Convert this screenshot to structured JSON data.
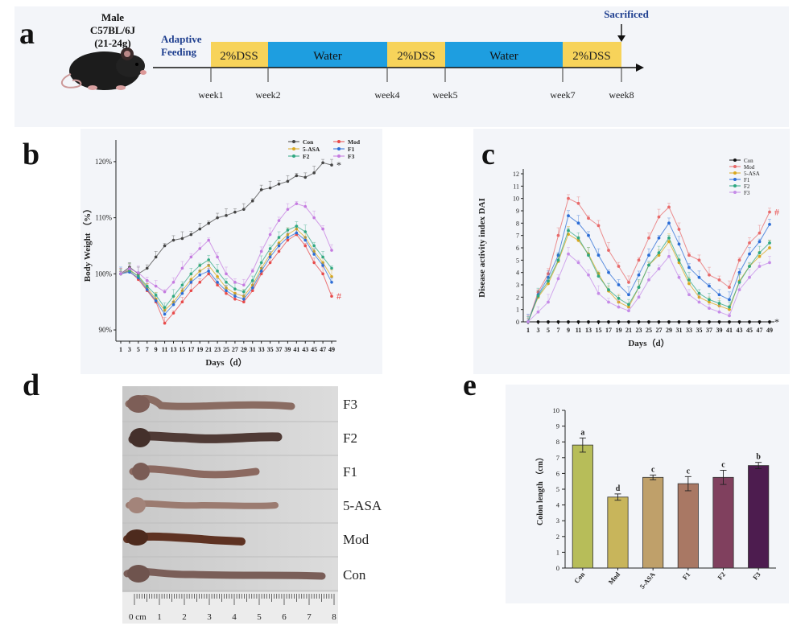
{
  "panel_labels": [
    "a",
    "b",
    "c",
    "d",
    "e"
  ],
  "panel_a": {
    "mouse_label": [
      "Male",
      "C57BL/6J",
      "(21-24g)"
    ],
    "adaptive_label": [
      "Adaptive",
      "Feeding"
    ],
    "sacrificed": "Sacrificed",
    "segments": [
      {
        "label": "2%DSS",
        "type": "dss"
      },
      {
        "label": "Water",
        "type": "water"
      },
      {
        "label": "2%DSS",
        "type": "dss"
      },
      {
        "label": "Water",
        "type": "water"
      },
      {
        "label": "2%DSS",
        "type": "dss"
      }
    ],
    "weeks": [
      "week1",
      "week2",
      "week4",
      "week5",
      "week7",
      "week8"
    ],
    "colors": {
      "dss": "#f7d35a",
      "water": "#1e9ee0",
      "label_blue": "#1f3f8f"
    }
  },
  "panel_d": {
    "labels": [
      "F3",
      "F2",
      "F1",
      "5-ASA",
      "Mod",
      "Con"
    ],
    "ruler_text": "0 cm",
    "ruler_numbers": [
      "1",
      "2",
      "3",
      "4",
      "5",
      "6",
      "7",
      "8"
    ]
  },
  "chart_data": [
    {
      "id": "b",
      "type": "line",
      "xlabel": "Days（d）",
      "ylabel": "Body Weight （%）",
      "x": [
        1,
        3,
        5,
        7,
        9,
        11,
        13,
        15,
        17,
        19,
        21,
        23,
        25,
        27,
        29,
        31,
        33,
        35,
        37,
        39,
        41,
        43,
        45,
        47,
        49
      ],
      "ylim": [
        88,
        123
      ],
      "y_ticks": [
        "90%",
        "100%",
        "110%",
        "120%"
      ],
      "y_tick_values": [
        90,
        100,
        110,
        120
      ],
      "series": [
        {
          "name": "Con",
          "color": "#444444",
          "values": [
            100,
            101.2,
            100,
            101,
            103,
            105,
            106,
            106.3,
            107,
            108,
            109,
            110,
            110.4,
            111,
            111.5,
            113,
            115,
            115.3,
            116,
            116.5,
            117.5,
            117.2,
            118,
            119.8,
            119.4
          ]
        },
        {
          "name": "Mod",
          "color": "#e84a4a",
          "values": [
            100,
            100.5,
            99,
            97,
            95,
            91.2,
            93,
            95,
            97,
            98.5,
            100,
            98,
            96.5,
            95.5,
            95,
            97,
            100,
            102,
            104,
            106,
            107,
            105,
            102,
            100,
            96
          ]
        },
        {
          "name": "5-ASA",
          "color": "#d9a81e",
          "values": [
            100,
            100.8,
            99.5,
            97.5,
            95.5,
            93.5,
            95,
            97,
            99,
            100.5,
            101.5,
            99.5,
            97.5,
            96.5,
            96,
            98,
            101,
            103.5,
            105.5,
            107,
            108,
            106.5,
            104,
            102,
            99.5
          ]
        },
        {
          "name": "F1",
          "color": "#2c6dd6",
          "values": [
            100,
            100.3,
            99.3,
            97.2,
            95.2,
            92.8,
            94.5,
            96.5,
            98.5,
            99.8,
            100.5,
            98.5,
            97,
            96,
            95.5,
            97.5,
            100.5,
            103,
            105,
            106.5,
            107.3,
            106,
            103.5,
            101.5,
            98.5
          ]
        },
        {
          "name": "F2",
          "color": "#2fa882",
          "values": [
            100,
            100.6,
            99.6,
            97.8,
            96.2,
            94,
            96,
            98,
            100,
            101.5,
            102.5,
            100.5,
            98.5,
            97.3,
            96.8,
            98.8,
            102,
            104.5,
            106.5,
            107.8,
            108.5,
            107.5,
            105,
            103,
            101
          ]
        },
        {
          "name": "F3",
          "color": "#c57be0",
          "values": [
            100,
            100.9,
            100.2,
            98.8,
            97.8,
            96.8,
            98.5,
            101,
            103,
            104.5,
            106,
            103,
            100,
            98.5,
            98,
            100.5,
            104,
            107,
            109.5,
            111.5,
            112.5,
            112,
            110,
            108,
            104.2
          ]
        }
      ],
      "annotations": [
        {
          "text": "*",
          "series": "Con"
        },
        {
          "text": "#",
          "series": "Mod"
        }
      ]
    },
    {
      "id": "c",
      "type": "line",
      "xlabel": "Days（d）",
      "ylabel": "Disease activity index DAI",
      "x": [
        1,
        3,
        5,
        7,
        9,
        11,
        13,
        15,
        17,
        19,
        21,
        23,
        25,
        27,
        29,
        31,
        33,
        35,
        37,
        39,
        41,
        43,
        45,
        47,
        49
      ],
      "ylim": [
        0,
        12
      ],
      "y_ticks": [
        "0",
        "1",
        "2",
        "3",
        "4",
        "5",
        "6",
        "7",
        "8",
        "9",
        "10",
        "11",
        "12"
      ],
      "y_tick_values": [
        0,
        1,
        2,
        3,
        4,
        5,
        6,
        7,
        8,
        9,
        10,
        11,
        12
      ],
      "series": [
        {
          "name": "Con",
          "color": "#111111",
          "values": [
            0,
            0,
            0,
            0,
            0,
            0,
            0,
            0,
            0,
            0,
            0,
            0,
            0,
            0,
            0,
            0,
            0,
            0,
            0,
            0,
            0,
            0,
            0,
            0,
            0
          ]
        },
        {
          "name": "Mod",
          "color": "#e86a6a",
          "values": [
            0,
            2.4,
            3.9,
            7,
            10,
            9.6,
            8.4,
            7.8,
            5.8,
            4.5,
            3.2,
            5,
            6.8,
            8.5,
            9.3,
            7.5,
            5.4,
            5,
            3.8,
            3.4,
            2.8,
            5,
            6.4,
            7.2,
            8.9
          ]
        },
        {
          "name": "5-ASA",
          "color": "#d9a81e",
          "values": [
            0,
            2,
            3.1,
            4.9,
            7.1,
            6.6,
            5.5,
            3.9,
            2.5,
            1.6,
            1.2,
            2.8,
            4.6,
            5.4,
            6.5,
            4.8,
            3.1,
            2,
            1.6,
            1.3,
            1,
            3.3,
            4.5,
            5.3,
            6
          ]
        },
        {
          "name": "F1",
          "color": "#2c6dd6",
          "values": [
            0,
            2.2,
            3.6,
            5.4,
            8.6,
            8,
            7,
            5.4,
            4,
            3,
            2.2,
            3.8,
            5.4,
            6.8,
            8,
            6.3,
            4.4,
            3.6,
            2.9,
            2.2,
            1.8,
            4,
            5.5,
            6.5,
            7.9
          ]
        },
        {
          "name": "F2",
          "color": "#2fa882",
          "values": [
            0,
            2.1,
            3.3,
            5,
            7.4,
            6.8,
            5.4,
            3.7,
            2.6,
            1.9,
            1.4,
            2.8,
            4.6,
            5.6,
            6.8,
            5,
            3.4,
            2.3,
            1.8,
            1.5,
            1.2,
            3.2,
            4.5,
            5.6,
            6.4
          ]
        },
        {
          "name": "F3",
          "color": "#c68ce8",
          "values": [
            0,
            0.8,
            1.6,
            3.5,
            5.5,
            4.8,
            3.8,
            2.3,
            1.6,
            1.2,
            0.9,
            2,
            3.4,
            4.3,
            5.3,
            3.6,
            2.2,
            1.6,
            1.1,
            0.8,
            0.5,
            2.6,
            3.6,
            4.5,
            4.8
          ]
        }
      ],
      "annotations": [
        {
          "text": "*",
          "series": "Con"
        },
        {
          "text": "#",
          "series": "Mod"
        }
      ]
    },
    {
      "id": "e",
      "type": "bar",
      "xlabel": "",
      "ylabel": "Colon length （cm）",
      "categories": [
        "Con",
        "Mod",
        "5-ASA",
        "F1",
        "F2",
        "F3"
      ],
      "values": [
        7.8,
        4.5,
        5.75,
        5.35,
        5.75,
        6.5
      ],
      "errors": [
        0.45,
        0.2,
        0.15,
        0.45,
        0.45,
        0.2
      ],
      "letters": [
        "a",
        "d",
        "c",
        "c",
        "c",
        "b"
      ],
      "colors": [
        "#b7bd59",
        "#c8b55b",
        "#bfa06a",
        "#a97864",
        "#80405e",
        "#4d1c4f"
      ],
      "ylim": [
        0,
        10
      ],
      "y_ticks": [
        "0",
        "1",
        "2",
        "3",
        "4",
        "5",
        "6",
        "7",
        "8",
        "9",
        "10"
      ],
      "y_tick_values": [
        0,
        1,
        2,
        3,
        4,
        5,
        6,
        7,
        8,
        9,
        10
      ]
    }
  ]
}
